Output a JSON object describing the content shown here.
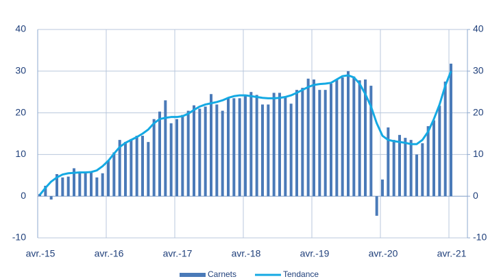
{
  "chart_data": {
    "type": "bar+line",
    "categories": [
      "avr.-15",
      null,
      null,
      null,
      null,
      null,
      null,
      null,
      null,
      null,
      null,
      null,
      "avr.-16",
      null,
      null,
      null,
      null,
      null,
      null,
      null,
      null,
      null,
      null,
      null,
      "avr.-17",
      null,
      null,
      null,
      null,
      null,
      null,
      null,
      null,
      null,
      null,
      null,
      "avr.-18",
      null,
      null,
      null,
      null,
      null,
      null,
      null,
      null,
      null,
      null,
      null,
      "avr.-19",
      null,
      null,
      null,
      null,
      null,
      null,
      null,
      null,
      null,
      null,
      null,
      "avr.-20",
      null,
      null,
      null,
      null,
      null,
      null,
      null,
      null,
      null,
      null,
      null,
      "avr.-21"
    ],
    "series": [
      {
        "name": "Carnets",
        "type": "bar",
        "color": "#4a7ab8",
        "values": [
          0.5,
          2.5,
          -0.8,
          5.3,
          4.5,
          4.7,
          6.7,
          5.5,
          5.5,
          6,
          4.5,
          5.5,
          8.5,
          10.5,
          13.5,
          13,
          13.7,
          14.5,
          14.5,
          13,
          18.5,
          20.3,
          23,
          17.5,
          18.5,
          19.5,
          20.5,
          21.8,
          21,
          21.5,
          24.5,
          22,
          20.5,
          23.5,
          23.5,
          23.5,
          24.3,
          25,
          24.3,
          22,
          22,
          24.8,
          24.8,
          24,
          22.2,
          25.5,
          26,
          28.2,
          28,
          25.5,
          25.5,
          27,
          28,
          28.5,
          30,
          28.7,
          27.8,
          28,
          26.5,
          -4.7,
          4,
          16.5,
          13.5,
          14.7,
          14,
          13.5,
          10,
          12.7,
          16.8,
          18.2,
          21.7,
          27.5,
          31.8
        ]
      },
      {
        "name": "Tendance",
        "type": "line",
        "color": "#14a9e3",
        "values": [
          0.3,
          2,
          3.5,
          4.5,
          5.2,
          5.5,
          5.6,
          5.7,
          5.7,
          5.8,
          6.2,
          7.2,
          8.5,
          10.2,
          11.8,
          12.8,
          13.5,
          14.2,
          15,
          16,
          17.5,
          18.5,
          18.8,
          19,
          19,
          19.2,
          19.8,
          20.7,
          21.5,
          22,
          22.3,
          22.6,
          23,
          23.6,
          24,
          24.2,
          24.2,
          24,
          23.8,
          23.6,
          23.5,
          23.5,
          23.6,
          23.8,
          24.2,
          24.8,
          25.5,
          26.2,
          26.7,
          26.9,
          27,
          27.2,
          28,
          28.8,
          29,
          28.5,
          27,
          24.5,
          21.5,
          17.5,
          14.5,
          13.5,
          13.2,
          13,
          12.8,
          12.5,
          12.5,
          13.5,
          15.5,
          18.5,
          22,
          26.5,
          30
        ]
      }
    ],
    "ylim": [
      -10,
      40
    ],
    "yticks": [
      -10,
      0,
      10,
      20,
      30,
      40
    ],
    "y2lim": [
      -10,
      40
    ],
    "y2ticks": [
      -10,
      0,
      10,
      20,
      30,
      40
    ],
    "grid": true,
    "legend": "bottom"
  }
}
